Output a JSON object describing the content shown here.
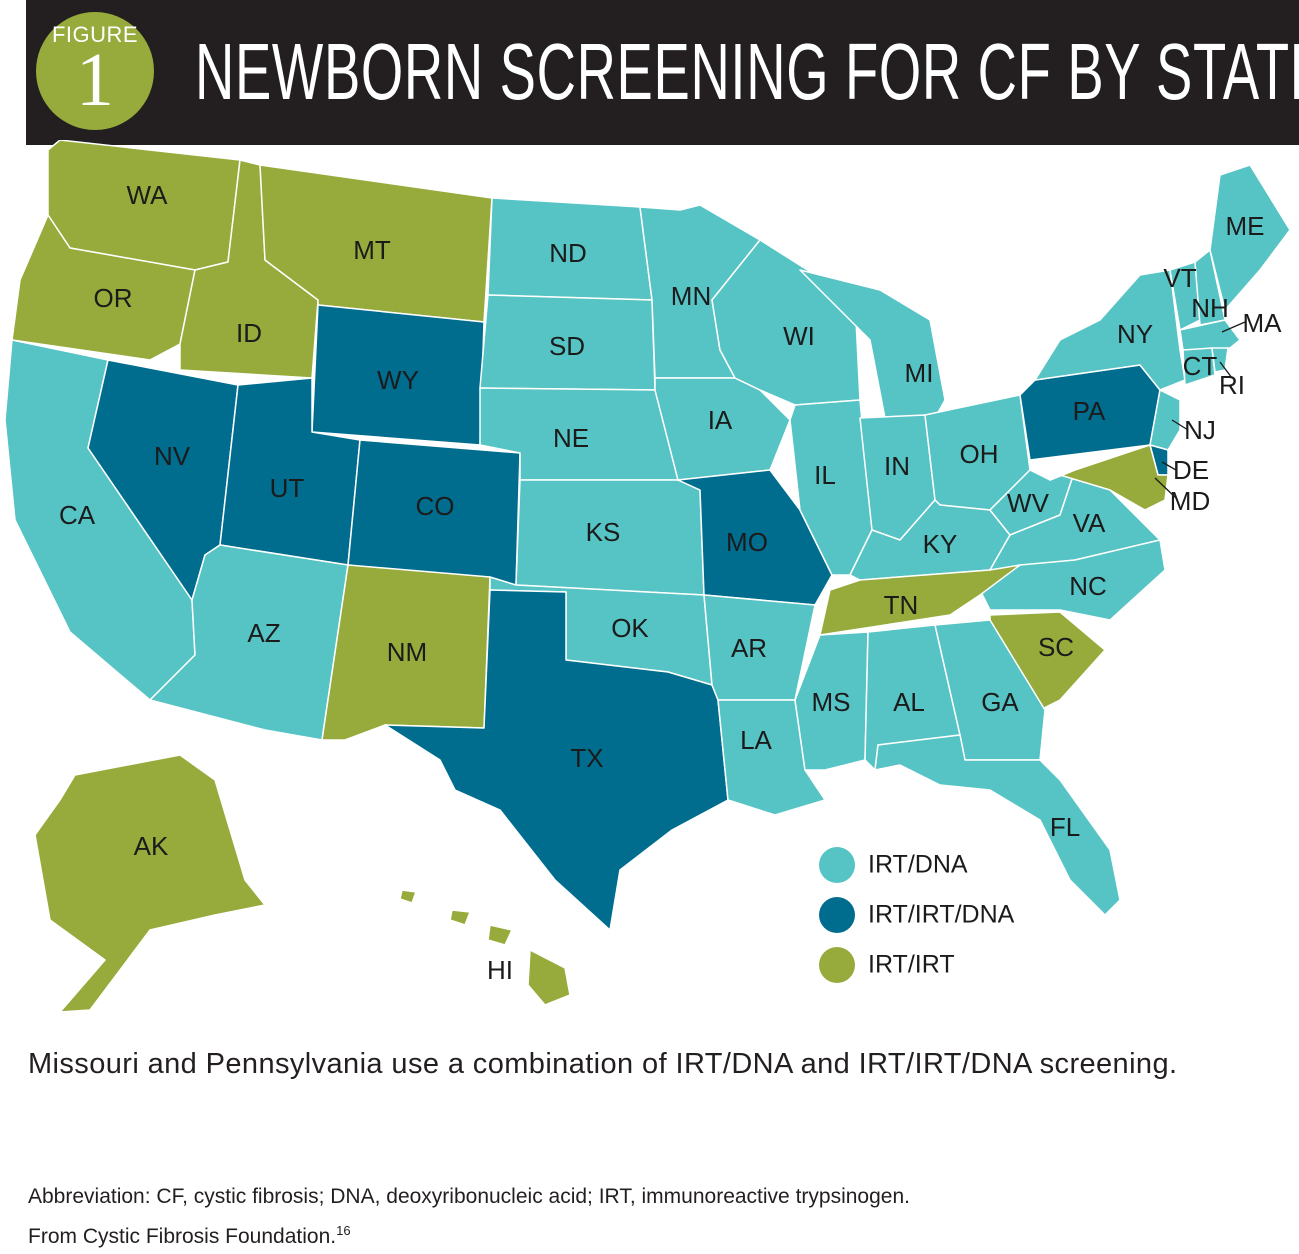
{
  "header": {
    "figure_word": "FIGURE",
    "figure_number": "1",
    "title": "NEWBORN SCREENING FOR CF BY STATE"
  },
  "colors": {
    "irt_dna": "#56c3c4",
    "irt_irt_dna": "#006d8e",
    "irt_irt": "#96ab3b"
  },
  "legend": [
    {
      "key": "irt_dna",
      "label": "IRT/DNA"
    },
    {
      "key": "irt_irt_dna",
      "label": "IRT/IRT/DNA"
    },
    {
      "key": "irt_irt",
      "label": "IRT/IRT"
    }
  ],
  "states": {
    "WA": "irt_irt",
    "OR": "irt_irt",
    "ID": "irt_irt",
    "MT": "irt_irt",
    "NM": "irt_irt",
    "AK": "irt_irt",
    "HI": "irt_irt",
    "TN": "irt_irt",
    "SC": "irt_irt",
    "MD": "irt_irt",
    "NV": "irt_irt_dna",
    "UT": "irt_irt_dna",
    "WY": "irt_irt_dna",
    "CO": "irt_irt_dna",
    "TX": "irt_irt_dna",
    "MO": "irt_irt_dna",
    "PA": "irt_irt_dna",
    "DE": "irt_irt_dna",
    "CA": "irt_dna",
    "AZ": "irt_dna",
    "ND": "irt_dna",
    "SD": "irt_dna",
    "NE": "irt_dna",
    "KS": "irt_dna",
    "OK": "irt_dna",
    "MN": "irt_dna",
    "IA": "irt_dna",
    "AR": "irt_dna",
    "LA": "irt_dna",
    "WI": "irt_dna",
    "IL": "irt_dna",
    "MI": "irt_dna",
    "IN": "irt_dna",
    "OH": "irt_dna",
    "KY": "irt_dna",
    "WV": "irt_dna",
    "VA": "irt_dna",
    "NC": "irt_dna",
    "MS": "irt_dna",
    "AL": "irt_dna",
    "GA": "irt_dna",
    "FL": "irt_dna",
    "NY": "irt_dna",
    "VT": "irt_dna",
    "NH": "irt_dna",
    "ME": "irt_dna",
    "MA": "irt_dna",
    "CT": "irt_dna",
    "RI": "irt_dna",
    "NJ": "irt_dna"
  },
  "caption": "Missouri and Pennsylvania use a combination of IRT/DNA and IRT/IRT/DNA screening.",
  "footnote": {
    "abbreviation": "Abbreviation: CF, cystic fibrosis; DNA, deoxyribonucleic acid; IRT, immunoreactive trypsinogen.",
    "source": "From Cystic Fibrosis Foundation.",
    "reference": "16"
  }
}
